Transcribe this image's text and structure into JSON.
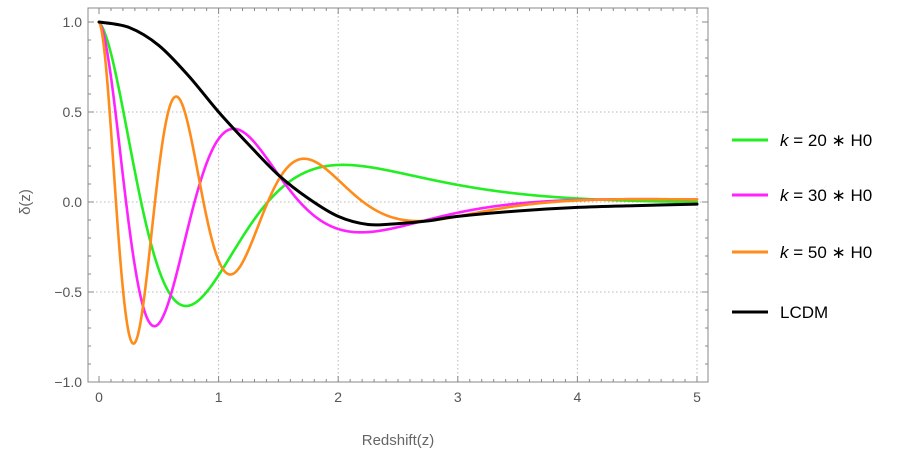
{
  "chart_data": {
    "type": "line",
    "title": "",
    "xlabel": "Redshift(z)",
    "ylabel": "δ(z)",
    "xlim": [
      0,
      5
    ],
    "ylim": [
      -1.0,
      1.0
    ],
    "grid": true,
    "legend_position": "right",
    "x_ticks": [
      "0",
      "1",
      "2",
      "3",
      "4",
      "5"
    ],
    "y_ticks": [
      "-1.0",
      "-0.5",
      "0.0",
      "0.5",
      "1.0"
    ],
    "series": [
      {
        "name": "k = 20 * H0",
        "legend_k": "k",
        "legend_rest": " = 20 ∗ H0",
        "color": "#22ee22",
        "omega": 9.0,
        "decay": 0.72,
        "phase": 0.0
      },
      {
        "name": "k = 30 * H0",
        "legend_k": "k",
        "legend_rest": " = 30 ∗ H0",
        "color": "#ff22ff",
        "omega": 13.5,
        "decay": 0.78,
        "phase": 0.0
      },
      {
        "name": "k = 50 * H0",
        "legend_k": "k",
        "legend_rest": " = 50 ∗ H0",
        "color": "#ff8c1a",
        "omega": 21.0,
        "decay": 0.82,
        "phase": 0.0
      },
      {
        "name": "LCDM",
        "legend_k": "",
        "legend_rest": "LCDM",
        "color": "#000000",
        "points": [
          [
            0,
            1.0
          ],
          [
            0.25,
            0.97
          ],
          [
            0.5,
            0.87
          ],
          [
            0.75,
            0.7
          ],
          [
            1.0,
            0.5
          ],
          [
            1.25,
            0.32
          ],
          [
            1.5,
            0.15
          ],
          [
            1.75,
            0.02
          ],
          [
            2.0,
            -0.08
          ],
          [
            2.25,
            -0.125
          ],
          [
            2.5,
            -0.12
          ],
          [
            2.75,
            -0.105
          ],
          [
            3.0,
            -0.08
          ],
          [
            3.5,
            -0.05
          ],
          [
            4.0,
            -0.03
          ],
          [
            4.5,
            -0.02
          ],
          [
            5.0,
            -0.012
          ]
        ]
      }
    ]
  }
}
